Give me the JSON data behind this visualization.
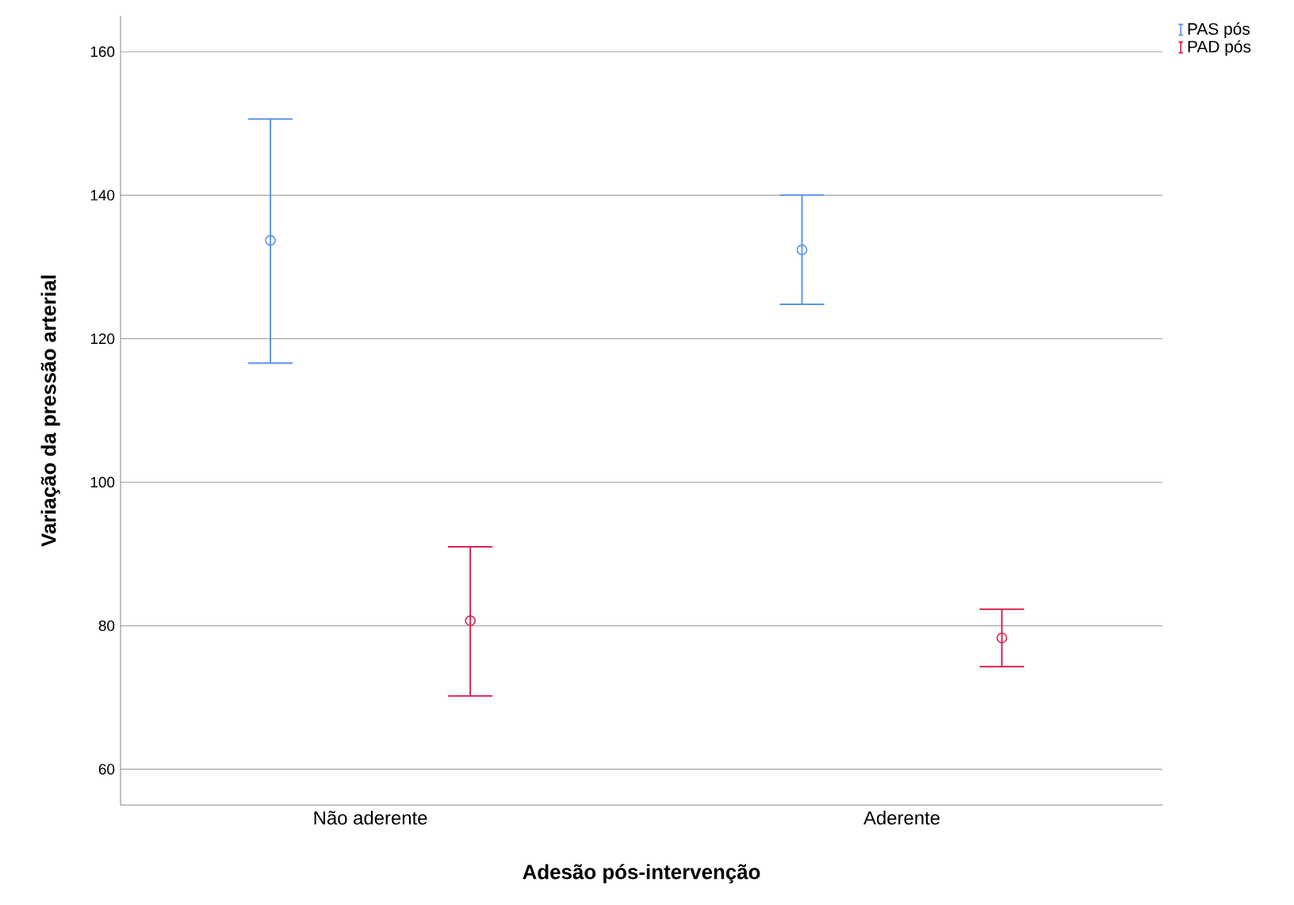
{
  "chart_data": {
    "type": "scatter",
    "xlabel": "Adesão pós-intervenção",
    "ylabel": "Variação da pressão arterial",
    "categories": [
      "Não aderente",
      "Aderente"
    ],
    "series": [
      {
        "name": "PAS pós",
        "color": "#5b97e3",
        "values": [
          133.7,
          132.4
        ],
        "errors": [
          [
            116.6,
            150.6
          ],
          [
            124.8,
            140.0
          ]
        ]
      },
      {
        "name": "PAD pós",
        "color": "#d8234f",
        "values": [
          80.7,
          78.3
        ],
        "errors": [
          [
            70.2,
            91.0
          ],
          [
            74.3,
            82.3
          ]
        ]
      }
    ],
    "ylim": [
      55,
      165
    ],
    "yticks": [
      60,
      80,
      100,
      120,
      140,
      160
    ],
    "grid": "y",
    "legend": "top right",
    "marker": "circle"
  }
}
